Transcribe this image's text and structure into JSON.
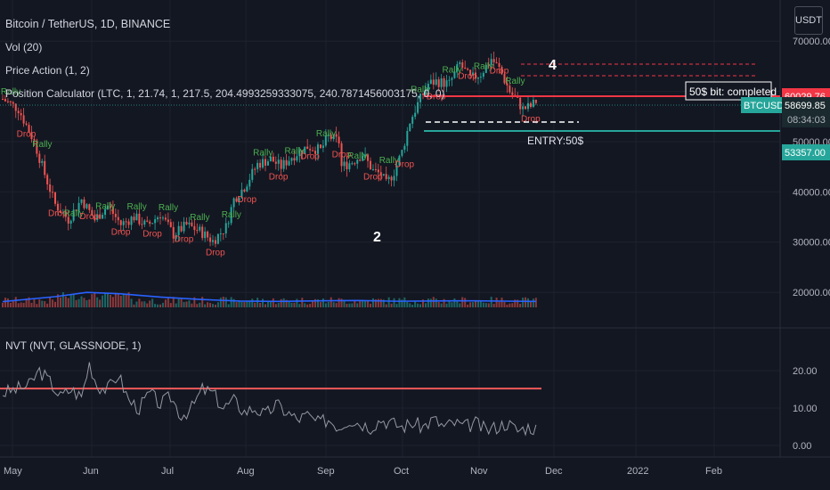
{
  "header": {
    "title": "Bitcoin / TetherUS, 1D, BINANCE",
    "vol": "Vol (20)",
    "price_action": "Price Action (1, 2)",
    "position_calc": "Position Calculator (LTC, 1, 21.74, 1, 217.5, 204.4993259333075, 240.7871456003175, 0, 0)",
    "nvt": "NVT (NVT, GLASSNODE, 1)",
    "currency": "USDT"
  },
  "colors": {
    "bg": "#131722",
    "up": "#26a69a",
    "down": "#ef5350",
    "grid": "#1e222d",
    "axis_text": "#b2b5be",
    "rally": "#4caf50",
    "drop": "#f05350",
    "ma": "#2962ff",
    "level_red": "#f23645",
    "level_teal": "#26a69a",
    "nvt_line": "#9598a1",
    "nvt_level": "#f05a5a"
  },
  "chart_data": {
    "type": "candlestick",
    "x_axis": [
      "May",
      "Jun",
      "Jul",
      "Aug",
      "Sep",
      "Oct",
      "Nov",
      "Dec",
      "2022",
      "Feb"
    ],
    "price_ticks": [
      "70000.00",
      "60000.00",
      "50000.00",
      "40000.00",
      "30000.00",
      "20000.00"
    ],
    "price_range": [
      17000,
      75000
    ],
    "nvt_ticks": [
      "20.00",
      "10.00",
      "0.00"
    ],
    "nvt_range": [
      0,
      25
    ],
    "nvt_level": 15.2,
    "price_labels": {
      "red_level": "60029.76",
      "current": "58699.85",
      "symbol": "BTCUSDT",
      "countdown": "08:34:03",
      "teal_level": "53357.00"
    },
    "annotations": {
      "completed": "50$ bit: completed",
      "entry": "ENTRY:50$",
      "wave_2": "2",
      "wave_4": "4",
      "rally": "Rally",
      "drop": "Drop"
    },
    "price_anchors": [
      [
        0,
        58500
      ],
      [
        6,
        56500
      ],
      [
        12,
        50000
      ],
      [
        16,
        43500
      ],
      [
        20,
        37500
      ],
      [
        25,
        34500
      ],
      [
        30,
        38500
      ],
      [
        35,
        34500
      ],
      [
        40,
        37200
      ],
      [
        45,
        33500
      ],
      [
        50,
        35000
      ],
      [
        55,
        33200
      ],
      [
        60,
        35600
      ],
      [
        65,
        31500
      ],
      [
        70,
        33400
      ],
      [
        75,
        32200
      ],
      [
        80,
        30200
      ],
      [
        85,
        33000
      ],
      [
        88,
        38500
      ],
      [
        92,
        41000
      ],
      [
        97,
        45500
      ],
      [
        102,
        46500
      ],
      [
        106,
        45000
      ],
      [
        110,
        47000
      ],
      [
        116,
        49000
      ],
      [
        121,
        48300
      ],
      [
        124,
        51000
      ],
      [
        128,
        50000
      ],
      [
        129,
        45000
      ],
      [
        133,
        46000
      ],
      [
        137,
        47500
      ],
      [
        141,
        44200
      ],
      [
        144,
        43500
      ],
      [
        146,
        41500
      ],
      [
        149,
        44000
      ],
      [
        152,
        48000
      ],
      [
        155,
        54000
      ],
      [
        158,
        57500
      ],
      [
        162,
        61500
      ],
      [
        165,
        62000
      ],
      [
        170,
        61500
      ],
      [
        174,
        65500
      ],
      [
        178,
        62500
      ],
      [
        182,
        63500
      ],
      [
        186,
        66500
      ],
      [
        189,
        64500
      ],
      [
        193,
        60000
      ],
      [
        196,
        58000
      ],
      [
        198,
        56500
      ],
      [
        201,
        57000
      ],
      [
        203,
        58000
      ]
    ],
    "volume_ma": [
      [
        0,
        4000
      ],
      [
        20,
        7500
      ],
      [
        32,
        10500
      ],
      [
        45,
        9500
      ],
      [
        60,
        7200
      ],
      [
        75,
        5600
      ],
      [
        90,
        4400
      ],
      [
        105,
        4200
      ],
      [
        120,
        4600
      ],
      [
        135,
        4800
      ],
      [
        150,
        4300
      ],
      [
        165,
        4500
      ],
      [
        180,
        4600
      ],
      [
        195,
        4300
      ],
      [
        203,
        4200
      ]
    ],
    "nvt_anchors": [
      [
        0,
        14
      ],
      [
        5,
        15
      ],
      [
        10,
        16
      ],
      [
        14,
        20
      ],
      [
        18,
        17
      ],
      [
        22,
        13
      ],
      [
        26,
        15
      ],
      [
        30,
        13
      ],
      [
        33,
        22
      ],
      [
        36,
        16
      ],
      [
        40,
        15
      ],
      [
        44,
        19
      ],
      [
        48,
        12
      ],
      [
        52,
        10
      ],
      [
        56,
        14
      ],
      [
        60,
        11
      ],
      [
        64,
        13
      ],
      [
        68,
        8
      ],
      [
        72,
        10
      ],
      [
        76,
        15
      ],
      [
        80,
        14
      ],
      [
        84,
        10
      ],
      [
        88,
        12
      ],
      [
        92,
        9
      ],
      [
        96,
        10
      ],
      [
        100,
        8
      ],
      [
        104,
        11
      ],
      [
        108,
        9
      ],
      [
        112,
        7
      ],
      [
        116,
        8
      ],
      [
        120,
        6
      ],
      [
        124,
        7
      ],
      [
        128,
        5
      ],
      [
        132,
        7
      ],
      [
        136,
        6
      ],
      [
        140,
        5
      ],
      [
        144,
        7
      ],
      [
        148,
        6
      ],
      [
        152,
        5
      ],
      [
        156,
        6
      ],
      [
        160,
        5
      ],
      [
        164,
        7
      ],
      [
        168,
        5
      ],
      [
        172,
        6
      ],
      [
        176,
        5
      ],
      [
        180,
        6
      ],
      [
        184,
        4
      ],
      [
        188,
        5
      ],
      [
        192,
        6
      ],
      [
        196,
        4
      ],
      [
        200,
        5
      ],
      [
        203,
        4.5
      ]
    ]
  }
}
